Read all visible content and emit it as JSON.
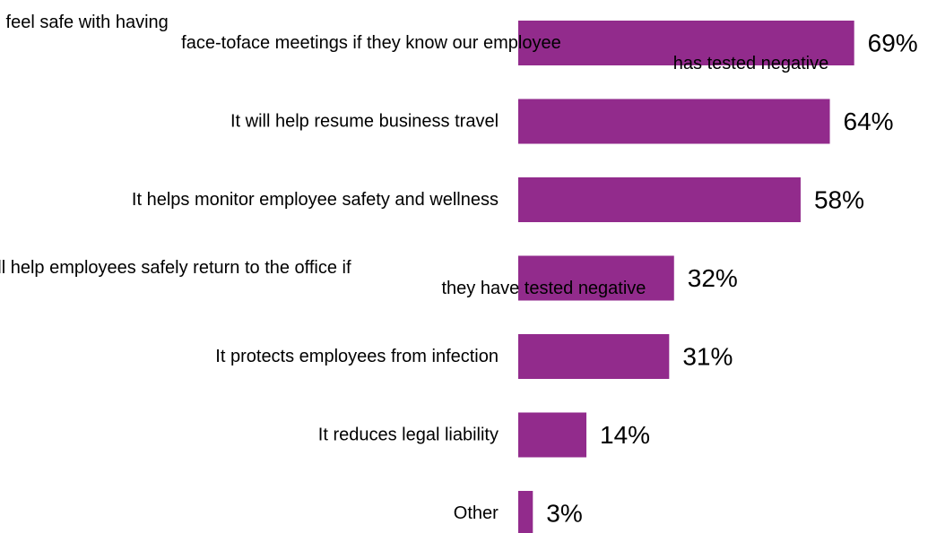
{
  "chart_data": {
    "type": "bar",
    "orientation": "horizontal",
    "categories": [
      "Our customers and clients will feel safe with having face-toface meetings if they know our employee has tested negative",
      "It will help resume business travel",
      "It helps monitor employee safety and wellness",
      "It will help employees safely return to the office if they have tested negative",
      "It protects employees from infection",
      "It reduces legal liability",
      "Other"
    ],
    "category_lines": [
      [
        "Our customers and clients will feel safe with having",
        "face-toface meetings if they know our employee",
        "has tested negative"
      ],
      [
        "It will help resume business travel"
      ],
      [
        "It helps monitor employee safety and wellness"
      ],
      [
        "It will help employees safely return to the office if",
        "they have tested negative"
      ],
      [
        "It protects employees from infection"
      ],
      [
        "It reduces legal liability"
      ],
      [
        "Other"
      ]
    ],
    "values": [
      69,
      64,
      58,
      32,
      31,
      14,
      3
    ],
    "value_labels": [
      "69%",
      "64%",
      "58%",
      "32%",
      "31%",
      "14%",
      "3%"
    ],
    "unit": "%",
    "xlim": [
      0,
      69
    ],
    "grid": false,
    "legend": "none",
    "bar_color": "#922B8C"
  }
}
